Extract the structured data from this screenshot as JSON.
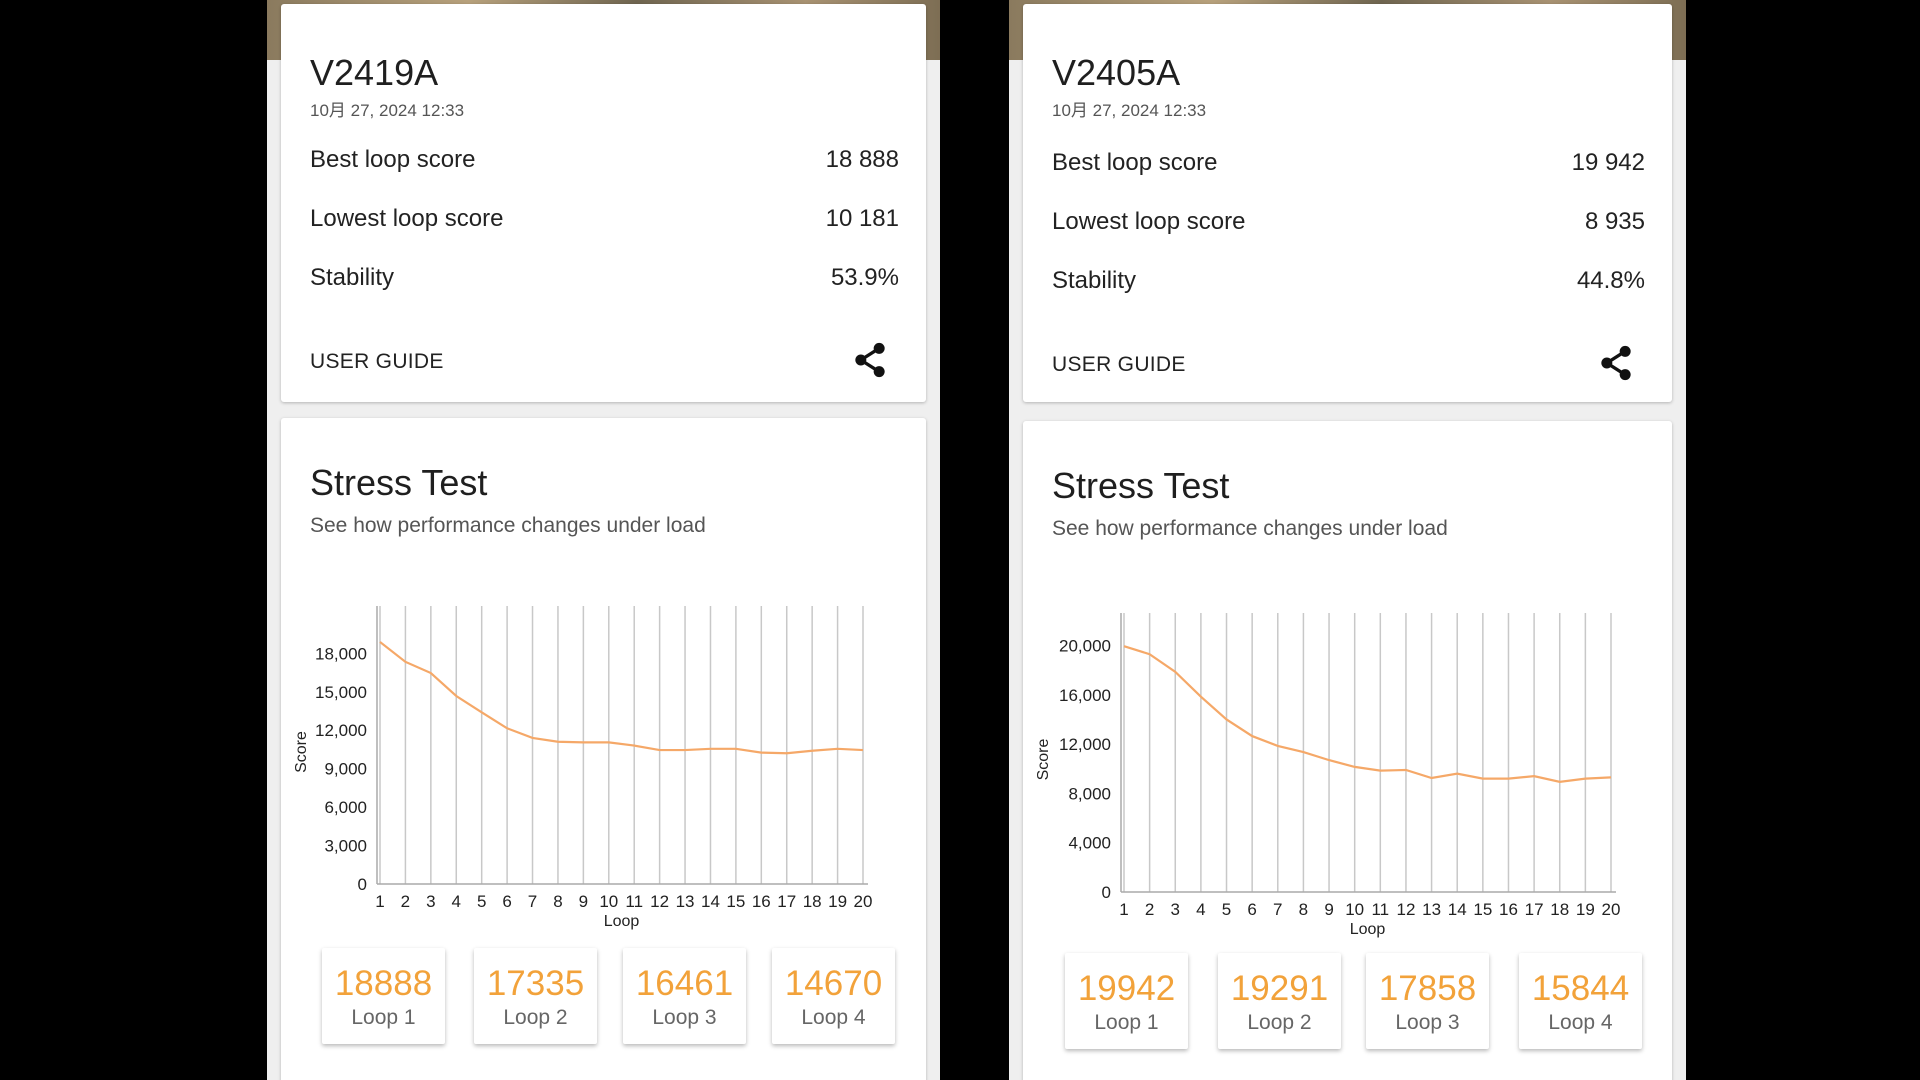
{
  "panels": [
    {
      "device": "V2419A",
      "date": "10月 27, 2024 12:33",
      "stats": [
        {
          "label": "Best loop score",
          "value": "18 888"
        },
        {
          "label": "Lowest loop score",
          "value": "10 181"
        },
        {
          "label": "Stability",
          "value": "53.9%"
        }
      ],
      "user_guide": "USER GUIDE",
      "share_icon": "share-icon",
      "stress_title": "Stress Test",
      "stress_subtitle": "See how performance changes under load",
      "tiles": [
        {
          "value": "18888",
          "label": "Loop 1"
        },
        {
          "value": "17335",
          "label": "Loop 2"
        },
        {
          "value": "16461",
          "label": "Loop 3"
        },
        {
          "value": "14670",
          "label": "Loop 4"
        }
      ]
    },
    {
      "device": "V2405A",
      "date": "10月 27, 2024 12:33",
      "stats": [
        {
          "label": "Best loop score",
          "value": "19 942"
        },
        {
          "label": "Lowest loop score",
          "value": "8 935"
        },
        {
          "label": "Stability",
          "value": "44.8%"
        }
      ],
      "user_guide": "USER GUIDE",
      "share_icon": "share-icon",
      "stress_title": "Stress Test",
      "stress_subtitle": "See how performance changes under load",
      "tiles": [
        {
          "value": "19942",
          "label": "Loop 1"
        },
        {
          "value": "19291",
          "label": "Loop 2"
        },
        {
          "value": "17858",
          "label": "Loop 3"
        },
        {
          "value": "15844",
          "label": "Loop 4"
        }
      ]
    }
  ],
  "chart_data": [
    {
      "type": "line",
      "xlabel": "Loop",
      "ylabel": "Score",
      "x": [
        1,
        2,
        3,
        4,
        5,
        6,
        7,
        8,
        9,
        10,
        11,
        12,
        13,
        14,
        15,
        16,
        17,
        18,
        19,
        20
      ],
      "yticks": [
        "0",
        "3,000",
        "6,000",
        "9,000",
        "12,000",
        "15,000",
        "18,000"
      ],
      "ylim": [
        0,
        20600
      ],
      "grid": "vertical",
      "series": [
        {
          "color": "#f5a868",
          "values": [
            18888,
            17335,
            16461,
            14670,
            13400,
            12150,
            11400,
            11100,
            11050,
            11050,
            10800,
            10450,
            10450,
            10550,
            10550,
            10250,
            10200,
            10400,
            10550,
            10450
          ]
        }
      ]
    },
    {
      "type": "line",
      "xlabel": "Loop",
      "ylabel": "Score",
      "x": [
        1,
        2,
        3,
        4,
        5,
        6,
        7,
        8,
        9,
        10,
        11,
        12,
        13,
        14,
        15,
        16,
        17,
        18,
        19,
        20
      ],
      "yticks": [
        "0",
        "4,000",
        "8,000",
        "12,000",
        "16,000",
        "20,000"
      ],
      "ylim": [
        0,
        21500
      ],
      "grid": "vertical",
      "series": [
        {
          "color": "#f5a868",
          "values": [
            19942,
            19291,
            17858,
            15844,
            14000,
            12650,
            11850,
            11350,
            10700,
            10150,
            9850,
            9900,
            9250,
            9600,
            9200,
            9200,
            9400,
            8935,
            9200,
            9300
          ]
        }
      ]
    }
  ]
}
